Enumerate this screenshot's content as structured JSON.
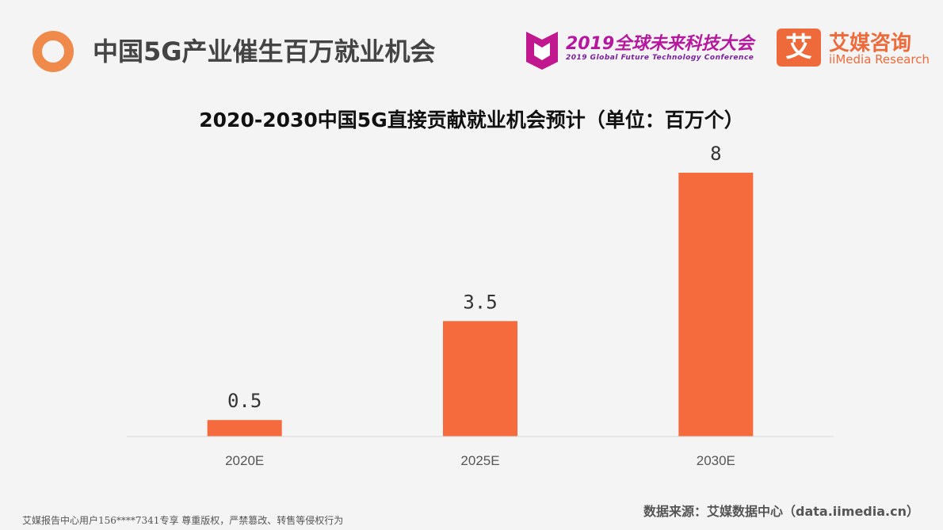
{
  "header": {
    "title": "中国5G产业催生百万就业机会"
  },
  "conference_logo": {
    "title": "2019全球未来科技大会",
    "subtitle": "2019 Global Future Technology Conference",
    "color": "#b5179e"
  },
  "brand": {
    "mark": "艾",
    "name_cn": "艾媒咨询",
    "name_en": "iiMedia Research",
    "color": "#ef6a3a"
  },
  "chart_data": {
    "type": "bar",
    "title": "2020-2030中国5G直接贡献就业机会预计（单位：百万个）",
    "categories": [
      "2020E",
      "2025E",
      "2030E"
    ],
    "values": [
      0.5,
      3.5,
      8
    ],
    "value_labels": [
      "0.5",
      "3.5",
      "8"
    ],
    "xlabel": "",
    "ylabel": "",
    "ylim": [
      0,
      8
    ],
    "grid": false,
    "bar_color": "#f56b3d",
    "axis_color": "#d9d9d9"
  },
  "footer": {
    "left": "艾媒报告中心用户156****7341专享 尊重版权，严禁篡改、转售等侵权行为",
    "right": "数据来源：艾媒数据中心（data.iimedia.cn）"
  }
}
